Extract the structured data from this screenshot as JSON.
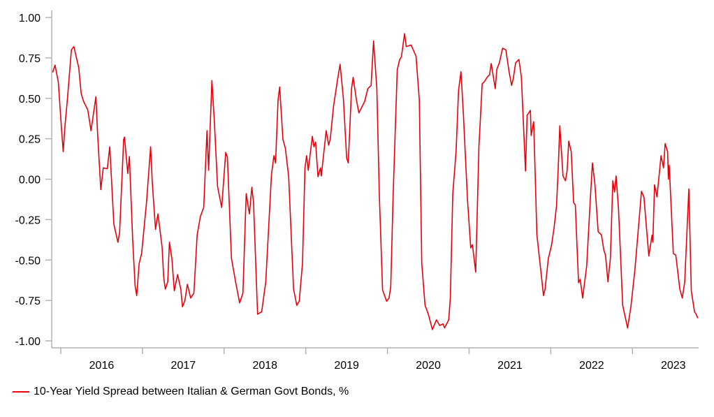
{
  "chart_data": {
    "type": "line",
    "title": "",
    "xlabel": "",
    "ylabel": "",
    "ylim": [
      -1.0,
      1.0
    ],
    "yticks": [
      "1.00",
      "0.75",
      "0.50",
      "0.25",
      "0.00",
      "-0.25",
      "-0.50",
      "-0.75",
      "-1.00"
    ],
    "ytick_values": [
      1.0,
      0.75,
      0.5,
      0.25,
      0.0,
      -0.25,
      -0.5,
      -0.75,
      -1.0
    ],
    "xlim": [
      2015.89,
      2023.81
    ],
    "xticks": [
      "2016",
      "2017",
      "2018",
      "2019",
      "2020",
      "2021",
      "2022",
      "2023"
    ],
    "grid": false,
    "legend_position": "bottom-left",
    "series": [
      {
        "name": "10-Year Yield Spread between Italian & German Govt Bonds, %",
        "color": "#e8000b",
        "points": [
          [
            2015.9,
            0.66
          ],
          [
            2015.93,
            0.705
          ],
          [
            2015.97,
            0.6
          ],
          [
            2016.01,
            0.3
          ],
          [
            2016.03,
            0.17
          ],
          [
            2016.05,
            0.32
          ],
          [
            2016.08,
            0.49
          ],
          [
            2016.13,
            0.8
          ],
          [
            2016.16,
            0.82
          ],
          [
            2016.22,
            0.69
          ],
          [
            2016.25,
            0.53
          ],
          [
            2016.28,
            0.48
          ],
          [
            2016.33,
            0.43
          ],
          [
            2016.37,
            0.3
          ],
          [
            2016.43,
            0.51
          ],
          [
            2016.45,
            0.29
          ],
          [
            2016.49,
            -0.065
          ],
          [
            2016.52,
            0.07
          ],
          [
            2016.57,
            0.065
          ],
          [
            2016.6,
            0.2
          ],
          [
            2016.65,
            -0.28
          ],
          [
            2016.7,
            -0.39
          ],
          [
            2016.72,
            -0.33
          ],
          [
            2016.77,
            0.245
          ],
          [
            2016.78,
            0.26
          ],
          [
            2016.82,
            0.035
          ],
          [
            2016.84,
            0.14
          ],
          [
            2016.88,
            -0.375
          ],
          [
            2016.91,
            -0.66
          ],
          [
            2016.93,
            -0.72
          ],
          [
            2016.96,
            -0.52
          ],
          [
            2016.99,
            -0.46
          ],
          [
            2017.05,
            -0.145
          ],
          [
            2017.1,
            0.2
          ],
          [
            2017.12,
            -0.015
          ],
          [
            2017.16,
            -0.31
          ],
          [
            2017.19,
            -0.215
          ],
          [
            2017.24,
            -0.42
          ],
          [
            2017.26,
            -0.605
          ],
          [
            2017.28,
            -0.68
          ],
          [
            2017.31,
            -0.635
          ],
          [
            2017.33,
            -0.39
          ],
          [
            2017.36,
            -0.49
          ],
          [
            2017.39,
            -0.69
          ],
          [
            2017.43,
            -0.59
          ],
          [
            2017.47,
            -0.68
          ],
          [
            2017.49,
            -0.79
          ],
          [
            2017.52,
            -0.75
          ],
          [
            2017.55,
            -0.65
          ],
          [
            2017.59,
            -0.735
          ],
          [
            2017.63,
            -0.705
          ],
          [
            2017.67,
            -0.345
          ],
          [
            2017.71,
            -0.23
          ],
          [
            2017.75,
            -0.175
          ],
          [
            2017.79,
            0.3
          ],
          [
            2017.81,
            0.055
          ],
          [
            2017.85,
            0.61
          ],
          [
            2017.88,
            0.36
          ],
          [
            2017.92,
            -0.045
          ],
          [
            2017.97,
            -0.175
          ],
          [
            2018.02,
            0.165
          ],
          [
            2018.04,
            0.135
          ],
          [
            2018.09,
            -0.49
          ],
          [
            2018.14,
            -0.635
          ],
          [
            2018.19,
            -0.765
          ],
          [
            2018.23,
            -0.705
          ],
          [
            2018.27,
            -0.09
          ],
          [
            2018.31,
            -0.215
          ],
          [
            2018.34,
            -0.05
          ],
          [
            2018.36,
            -0.145
          ],
          [
            2018.41,
            -0.835
          ],
          [
            2018.46,
            -0.82
          ],
          [
            2018.51,
            -0.635
          ],
          [
            2018.58,
            0.03
          ],
          [
            2018.61,
            0.145
          ],
          [
            2018.63,
            0.1
          ],
          [
            2018.66,
            0.49
          ],
          [
            2018.68,
            0.57
          ],
          [
            2018.72,
            0.245
          ],
          [
            2018.75,
            0.19
          ],
          [
            2018.79,
            0.015
          ],
          [
            2018.85,
            -0.68
          ],
          [
            2018.89,
            -0.78
          ],
          [
            2018.92,
            -0.755
          ],
          [
            2018.96,
            -0.52
          ],
          [
            2018.99,
            0.07
          ],
          [
            2019.01,
            0.145
          ],
          [
            2019.03,
            0.055
          ],
          [
            2019.08,
            0.265
          ],
          [
            2019.1,
            0.2
          ],
          [
            2019.12,
            0.23
          ],
          [
            2019.15,
            0.015
          ],
          [
            2019.18,
            0.07
          ],
          [
            2019.19,
            0.02
          ],
          [
            2019.25,
            0.3
          ],
          [
            2019.28,
            0.21
          ],
          [
            2019.3,
            0.25
          ],
          [
            2019.34,
            0.45
          ],
          [
            2019.39,
            0.62
          ],
          [
            2019.42,
            0.71
          ],
          [
            2019.46,
            0.5
          ],
          [
            2019.5,
            0.13
          ],
          [
            2019.52,
            0.1
          ],
          [
            2019.56,
            0.56
          ],
          [
            2019.58,
            0.63
          ],
          [
            2019.62,
            0.49
          ],
          [
            2019.65,
            0.41
          ],
          [
            2019.72,
            0.48
          ],
          [
            2019.76,
            0.56
          ],
          [
            2019.8,
            0.58
          ],
          [
            2019.83,
            0.855
          ],
          [
            2019.87,
            0.56
          ],
          [
            2019.9,
            -0.09
          ],
          [
            2019.94,
            -0.685
          ],
          [
            2019.99,
            -0.755
          ],
          [
            2020.02,
            -0.735
          ],
          [
            2020.04,
            -0.665
          ],
          [
            2020.07,
            -0.09
          ],
          [
            2020.12,
            0.675
          ],
          [
            2020.15,
            0.74
          ],
          [
            2020.17,
            0.755
          ],
          [
            2020.21,
            0.9
          ],
          [
            2020.23,
            0.82
          ],
          [
            2020.29,
            0.83
          ],
          [
            2020.35,
            0.76
          ],
          [
            2020.39,
            0.49
          ],
          [
            2020.42,
            -0.52
          ],
          [
            2020.46,
            -0.78
          ],
          [
            2020.5,
            -0.835
          ],
          [
            2020.55,
            -0.93
          ],
          [
            2020.6,
            -0.87
          ],
          [
            2020.64,
            -0.905
          ],
          [
            2020.68,
            -0.895
          ],
          [
            2020.7,
            -0.92
          ],
          [
            2020.75,
            -0.87
          ],
          [
            2020.77,
            -0.735
          ],
          [
            2020.8,
            -0.09
          ],
          [
            2020.84,
            0.17
          ],
          [
            2020.87,
            0.545
          ],
          [
            2020.9,
            0.665
          ],
          [
            2020.93,
            0.4
          ],
          [
            2020.98,
            -0.13
          ],
          [
            2021.02,
            -0.425
          ],
          [
            2021.04,
            -0.405
          ],
          [
            2021.08,
            -0.575
          ],
          [
            2021.12,
            0.2
          ],
          [
            2021.16,
            0.59
          ],
          [
            2021.19,
            0.605
          ],
          [
            2021.22,
            0.63
          ],
          [
            2021.25,
            0.645
          ],
          [
            2021.27,
            0.715
          ],
          [
            2021.32,
            0.56
          ],
          [
            2021.34,
            0.68
          ],
          [
            2021.37,
            0.72
          ],
          [
            2021.41,
            0.81
          ],
          [
            2021.45,
            0.8
          ],
          [
            2021.49,
            0.66
          ],
          [
            2021.52,
            0.58
          ],
          [
            2021.54,
            0.62
          ],
          [
            2021.57,
            0.72
          ],
          [
            2021.61,
            0.74
          ],
          [
            2021.64,
            0.63
          ],
          [
            2021.69,
            0.05
          ],
          [
            2021.71,
            0.395
          ],
          [
            2021.75,
            0.425
          ],
          [
            2021.76,
            0.27
          ],
          [
            2021.79,
            0.355
          ],
          [
            2021.83,
            -0.345
          ],
          [
            2021.89,
            -0.62
          ],
          [
            2021.91,
            -0.72
          ],
          [
            2021.93,
            -0.68
          ],
          [
            2021.97,
            -0.49
          ],
          [
            2022.01,
            -0.405
          ],
          [
            2022.04,
            -0.3
          ],
          [
            2022.07,
            -0.165
          ],
          [
            2022.09,
            0.055
          ],
          [
            2022.11,
            0.33
          ],
          [
            2022.15,
            0.02
          ],
          [
            2022.18,
            -0.01
          ],
          [
            2022.2,
            0.055
          ],
          [
            2022.22,
            0.235
          ],
          [
            2022.25,
            0.17
          ],
          [
            2022.28,
            -0.145
          ],
          [
            2022.3,
            -0.16
          ],
          [
            2022.34,
            -0.64
          ],
          [
            2022.36,
            -0.62
          ],
          [
            2022.39,
            -0.735
          ],
          [
            2022.44,
            -0.535
          ],
          [
            2022.48,
            -0.16
          ],
          [
            2022.51,
            0.1
          ],
          [
            2022.54,
            -0.03
          ],
          [
            2022.58,
            -0.325
          ],
          [
            2022.62,
            -0.345
          ],
          [
            2022.65,
            -0.44
          ],
          [
            2022.67,
            -0.47
          ],
          [
            2022.7,
            -0.635
          ],
          [
            2022.73,
            -0.49
          ],
          [
            2022.76,
            -0.01
          ],
          [
            2022.78,
            -0.08
          ],
          [
            2022.8,
            0.02
          ],
          [
            2022.83,
            -0.19
          ],
          [
            2022.88,
            -0.78
          ],
          [
            2022.94,
            -0.92
          ],
          [
            2022.98,
            -0.79
          ],
          [
            2023.03,
            -0.56
          ],
          [
            2023.06,
            -0.38
          ],
          [
            2023.11,
            -0.075
          ],
          [
            2023.14,
            -0.11
          ],
          [
            2023.2,
            -0.475
          ],
          [
            2023.24,
            -0.345
          ],
          [
            2023.25,
            -0.39
          ],
          [
            2023.27,
            -0.035
          ],
          [
            2023.3,
            -0.11
          ],
          [
            2023.35,
            0.145
          ],
          [
            2023.38,
            0.07
          ],
          [
            2023.4,
            0.22
          ],
          [
            2023.43,
            0.17
          ],
          [
            2023.44,
            0.0
          ],
          [
            2023.45,
            0.085
          ],
          [
            2023.5,
            -0.46
          ],
          [
            2023.53,
            -0.47
          ],
          [
            2023.58,
            -0.68
          ],
          [
            2023.61,
            -0.735
          ],
          [
            2023.64,
            -0.635
          ],
          [
            2023.69,
            -0.06
          ],
          [
            2023.72,
            -0.69
          ],
          [
            2023.76,
            -0.82
          ],
          [
            2023.78,
            -0.835
          ],
          [
            2023.8,
            -0.86
          ]
        ]
      }
    ]
  },
  "legend": {
    "label": "10-Year Yield Spread between Italian & German Govt Bonds, %"
  }
}
